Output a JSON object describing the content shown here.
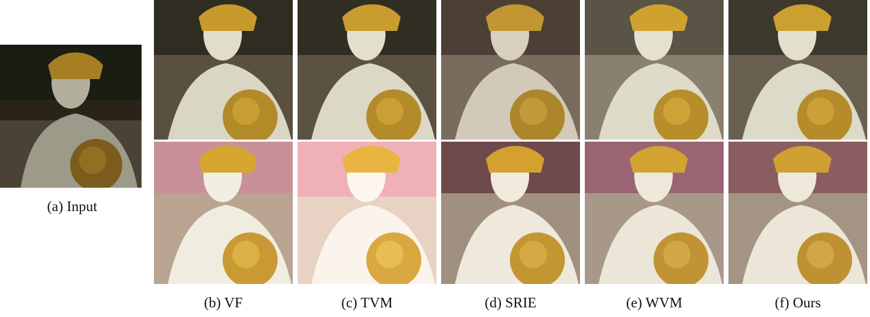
{
  "figure": {
    "captions": {
      "input": "(a)  Input",
      "vf": "(b)  VF",
      "tvm": "(c)  TVM",
      "srie": "(d)  SRIE",
      "wvm": "(e)  WVM",
      "ours": "(f)  Ours"
    }
  }
}
